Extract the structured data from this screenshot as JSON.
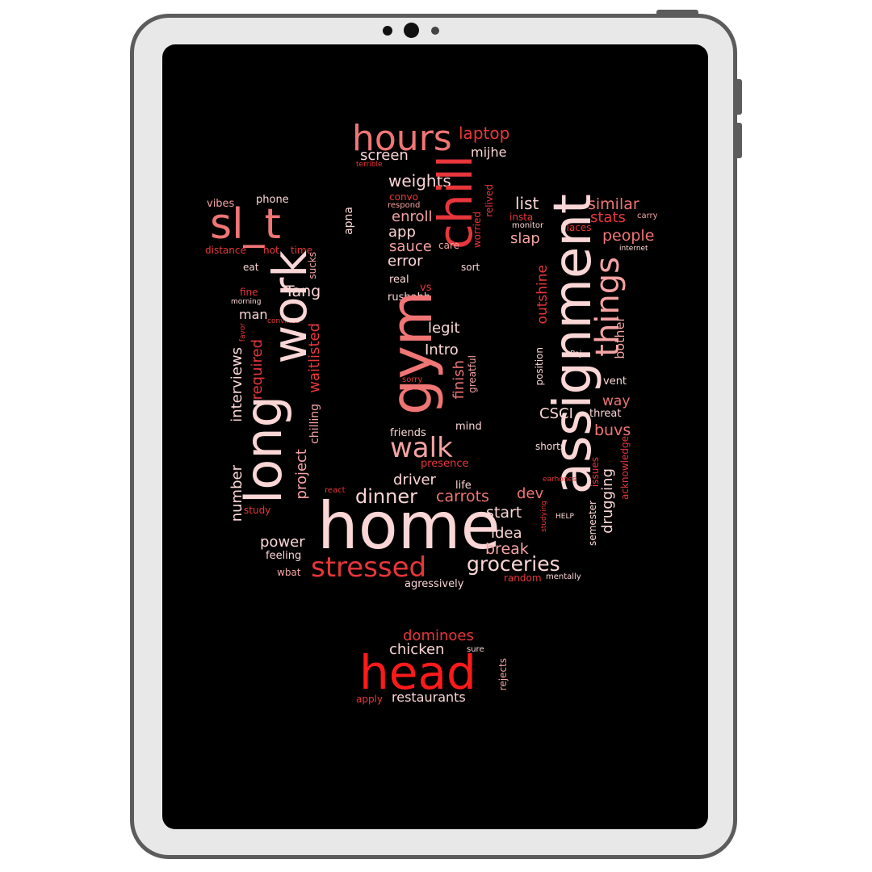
{
  "device": {
    "frame_color": "#5c5c5c",
    "bezel_color": "#e8e8e8",
    "screen_color": "#000000"
  },
  "palette": {
    "bright_red": "#ff1a1a",
    "red": "#e8363a",
    "salmon": "#f07575",
    "pink": "#f5a3a3",
    "light_pink": "#fbd6d6",
    "white": "#ffffff"
  },
  "words": {
    "hours": "hours",
    "laptop": "laptop",
    "screen": "screen",
    "mijhe": "mijhe",
    "terrible": "terrible",
    "weights": "weights",
    "chill": "chill",
    "list": "list",
    "similar": "similar",
    "phone": "phone",
    "vibes": "vibes",
    "slit": "sl_t",
    "convo": "convo",
    "respond": "respond",
    "enroll": "enroll",
    "worried": "worried",
    "relived": "relived",
    "insta": "insta",
    "stats": "stats",
    "carry": "carry",
    "apna": "apna",
    "app": "app",
    "monitor": "monitor",
    "places": "places",
    "distance": "distance",
    "hot": "hot",
    "time": "time",
    "sauce": "sauce",
    "care": "care",
    "slap": "slap",
    "people": "people",
    "internet": "internet",
    "error": "error",
    "sort": "sort",
    "eat": "eat",
    "sucks": "sucks",
    "assignment": "assignment",
    "real": "real",
    "vs": "vs",
    "fine": "fine",
    "morning": "morning",
    "tang": "Tang",
    "rushabh": "rushabh",
    "things": "things",
    "man": "man",
    "convince": "convince",
    "legit": "legit",
    "outshine": "outshine",
    "favor": "favor",
    "work": "work",
    "gym": "gym",
    "bother": "bother",
    "paj": "Paj",
    "intro": "Intro",
    "grateful": "greatful",
    "sorry": "sorry",
    "vent": "vent",
    "long": "long",
    "interviews": "interviews",
    "required": "required",
    "waitlisted": "waitlisted",
    "finish": "finish",
    "position": "position",
    "way": "way",
    "csci": "CSCI",
    "threat": "threat",
    "chilling": "chilling",
    "mind": "mind",
    "friends": "friends",
    "buvs": "buvs",
    "walk": "walk",
    "shorts": "shorts",
    "acknowledge": "acknowledge",
    "issues": "issues",
    "project": "project",
    "presence": "presence",
    "earhones": "earhones",
    "drugging": "drugging",
    "number": "number",
    "driver": "driver",
    "life": "life",
    "react": "react",
    "dinner": "dinner",
    "carrots": "carrots",
    "dev": "dev",
    "study": "study",
    "semester": "semester",
    "studying": "studying",
    "help": "HELP",
    "start": "start",
    "home": "home",
    "idea": "idea",
    "power": "power",
    "break": "break",
    "feeling": "feeling",
    "stressed": "stressed",
    "groceries": "groceries",
    "wbat": "wbat",
    "random": "random",
    "mentally": "mentally",
    "agressively": "agressively",
    "dominoes": "dominoes",
    "chicken": "chicken",
    "sure": "sure",
    "head": "head",
    "rejects": "rejects",
    "apply": "apply",
    "restaurants": "restaurants"
  }
}
